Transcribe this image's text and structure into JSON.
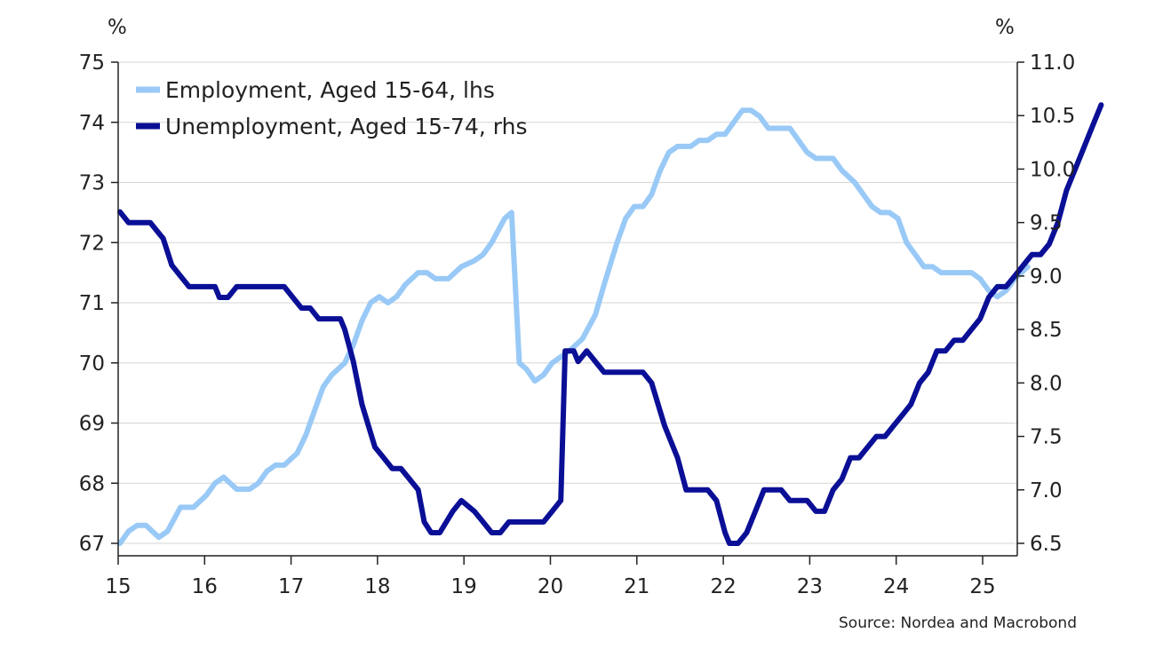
{
  "chart_data": {
    "type": "line",
    "y_left_unit": "%",
    "y_right_unit": "%",
    "y_left": {
      "min": 67,
      "max": 75,
      "ticks": [
        67,
        68,
        69,
        70,
        71,
        72,
        73,
        74,
        75
      ],
      "tick_labels": [
        "67",
        "68",
        "69",
        "70",
        "71",
        "72",
        "73",
        "74",
        "75"
      ]
    },
    "y_right": {
      "min": 6.5,
      "max": 11.0,
      "ticks": [
        6.5,
        7.0,
        7.5,
        8.0,
        8.5,
        9.0,
        9.5,
        10.0,
        10.5,
        11.0
      ],
      "tick_labels": [
        "6.5",
        "7.0",
        "7.5",
        "8.0",
        "8.5",
        "9.0",
        "9.5",
        "10.0",
        "10.5",
        "11.0"
      ]
    },
    "x_axis": {
      "min": 2015,
      "max": 2025.9,
      "ticks": [
        2015,
        2016,
        2017,
        2018,
        2019,
        2020,
        2021,
        2022,
        2023,
        2024,
        2025
      ],
      "tick_labels": [
        "15",
        "16",
        "17",
        "18",
        "19",
        "20",
        "21",
        "22",
        "23",
        "24",
        "25"
      ]
    },
    "grid": true,
    "legend_position": "top-left",
    "series": [
      {
        "name": "Employment, Aged 15-64, lhs",
        "axis": "left",
        "color": "#99c9f6",
        "points": [
          [
            2015.0,
            67.0
          ],
          [
            2015.1,
            67.2
          ],
          [
            2015.2,
            67.3
          ],
          [
            2015.3,
            67.3
          ],
          [
            2015.45,
            67.1
          ],
          [
            2015.55,
            67.2
          ],
          [
            2015.7,
            67.6
          ],
          [
            2015.85,
            67.6
          ],
          [
            2016.0,
            67.8
          ],
          [
            2016.1,
            68.0
          ],
          [
            2016.2,
            68.1
          ],
          [
            2016.35,
            67.9
          ],
          [
            2016.5,
            67.9
          ],
          [
            2016.6,
            68.0
          ],
          [
            2016.7,
            68.2
          ],
          [
            2016.8,
            68.3
          ],
          [
            2016.9,
            68.3
          ],
          [
            2017.05,
            68.5
          ],
          [
            2017.15,
            68.8
          ],
          [
            2017.25,
            69.2
          ],
          [
            2017.35,
            69.6
          ],
          [
            2017.45,
            69.8
          ],
          [
            2017.6,
            70.0
          ],
          [
            2017.7,
            70.3
          ],
          [
            2017.8,
            70.7
          ],
          [
            2017.9,
            71.0
          ],
          [
            2018.0,
            71.1
          ],
          [
            2018.1,
            71.0
          ],
          [
            2018.2,
            71.1
          ],
          [
            2018.3,
            71.3
          ],
          [
            2018.45,
            71.5
          ],
          [
            2018.55,
            71.5
          ],
          [
            2018.65,
            71.4
          ],
          [
            2018.8,
            71.4
          ],
          [
            2018.95,
            71.6
          ],
          [
            2019.1,
            71.7
          ],
          [
            2019.2,
            71.8
          ],
          [
            2019.3,
            72.0
          ],
          [
            2019.45,
            72.4
          ],
          [
            2019.53,
            72.5
          ],
          [
            2019.62,
            70.0
          ],
          [
            2019.7,
            69.9
          ],
          [
            2019.8,
            69.7
          ],
          [
            2019.9,
            69.8
          ],
          [
            2020.0,
            70.0
          ],
          [
            2020.1,
            70.1
          ],
          [
            2020.2,
            70.2
          ],
          [
            2020.35,
            70.4
          ],
          [
            2020.5,
            70.8
          ],
          [
            2020.6,
            71.3
          ],
          [
            2020.75,
            72.0
          ],
          [
            2020.85,
            72.4
          ],
          [
            2020.95,
            72.6
          ],
          [
            2021.05,
            72.6
          ],
          [
            2021.15,
            72.8
          ],
          [
            2021.25,
            73.2
          ],
          [
            2021.35,
            73.5
          ],
          [
            2021.45,
            73.6
          ],
          [
            2021.6,
            73.6
          ],
          [
            2021.7,
            73.7
          ],
          [
            2021.8,
            73.7
          ],
          [
            2021.9,
            73.8
          ],
          [
            2022.0,
            73.8
          ],
          [
            2022.1,
            74.0
          ],
          [
            2022.2,
            74.2
          ],
          [
            2022.3,
            74.2
          ],
          [
            2022.4,
            74.1
          ],
          [
            2022.5,
            73.9
          ],
          [
            2022.6,
            73.9
          ],
          [
            2022.75,
            73.9
          ],
          [
            2022.85,
            73.7
          ],
          [
            2022.95,
            73.5
          ],
          [
            2023.05,
            73.4
          ],
          [
            2023.15,
            73.4
          ],
          [
            2023.25,
            73.4
          ],
          [
            2023.35,
            73.2
          ],
          [
            2023.5,
            73.0
          ],
          [
            2023.6,
            72.8
          ],
          [
            2023.7,
            72.6
          ],
          [
            2023.8,
            72.5
          ],
          [
            2023.9,
            72.5
          ],
          [
            2024.0,
            72.4
          ],
          [
            2024.1,
            72.0
          ],
          [
            2024.2,
            71.8
          ],
          [
            2024.3,
            71.6
          ],
          [
            2024.4,
            71.6
          ],
          [
            2024.5,
            71.5
          ],
          [
            2024.7,
            71.5
          ],
          [
            2024.85,
            71.5
          ],
          [
            2024.95,
            71.4
          ],
          [
            2025.05,
            71.2
          ],
          [
            2025.15,
            71.1
          ],
          [
            2025.25,
            71.2
          ],
          [
            2025.35,
            71.4
          ],
          [
            2025.5,
            71.6
          ]
        ]
      },
      {
        "name": "Unemployment, Aged 15-74, rhs",
        "axis": "right",
        "color": "#0a0f96",
        "points": [
          [
            2015.0,
            9.6
          ],
          [
            2015.1,
            9.5
          ],
          [
            2015.2,
            9.5
          ],
          [
            2015.35,
            9.5
          ],
          [
            2015.5,
            9.35
          ],
          [
            2015.6,
            9.1
          ],
          [
            2015.7,
            9.0
          ],
          [
            2015.8,
            8.9
          ],
          [
            2016.0,
            8.9
          ],
          [
            2016.1,
            8.9
          ],
          [
            2016.15,
            8.8
          ],
          [
            2016.25,
            8.8
          ],
          [
            2016.35,
            8.9
          ],
          [
            2016.55,
            8.9
          ],
          [
            2016.75,
            8.9
          ],
          [
            2016.9,
            8.9
          ],
          [
            2017.0,
            8.8
          ],
          [
            2017.1,
            8.7
          ],
          [
            2017.2,
            8.7
          ],
          [
            2017.3,
            8.6
          ],
          [
            2017.45,
            8.6
          ],
          [
            2017.55,
            8.6
          ],
          [
            2017.6,
            8.5
          ],
          [
            2017.7,
            8.2
          ],
          [
            2017.8,
            7.8
          ],
          [
            2017.95,
            7.4
          ],
          [
            2018.05,
            7.3
          ],
          [
            2018.15,
            7.2
          ],
          [
            2018.25,
            7.2
          ],
          [
            2018.35,
            7.1
          ],
          [
            2018.45,
            7.0
          ],
          [
            2018.52,
            6.7
          ],
          [
            2018.6,
            6.6
          ],
          [
            2018.7,
            6.6
          ],
          [
            2018.85,
            6.8
          ],
          [
            2018.95,
            6.9
          ],
          [
            2019.1,
            6.8
          ],
          [
            2019.2,
            6.7
          ],
          [
            2019.3,
            6.6
          ],
          [
            2019.4,
            6.6
          ],
          [
            2019.5,
            6.7
          ],
          [
            2019.6,
            6.7
          ],
          [
            2019.8,
            6.7
          ],
          [
            2019.9,
            6.7
          ],
          [
            2020.0,
            6.8
          ],
          [
            2020.1,
            6.9
          ],
          [
            2020.15,
            8.3
          ],
          [
            2020.25,
            8.3
          ],
          [
            2020.3,
            8.2
          ],
          [
            2020.4,
            8.3
          ],
          [
            2020.5,
            8.2
          ],
          [
            2020.6,
            8.1
          ],
          [
            2020.8,
            8.1
          ],
          [
            2020.95,
            8.1
          ],
          [
            2021.05,
            8.1
          ],
          [
            2021.15,
            8.0
          ],
          [
            2021.3,
            7.6
          ],
          [
            2021.45,
            7.3
          ],
          [
            2021.55,
            7.0
          ],
          [
            2021.7,
            7.0
          ],
          [
            2021.8,
            7.0
          ],
          [
            2021.9,
            6.9
          ],
          [
            2022.0,
            6.6
          ],
          [
            2022.05,
            6.5
          ],
          [
            2022.15,
            6.5
          ],
          [
            2022.25,
            6.6
          ],
          [
            2022.35,
            6.8
          ],
          [
            2022.45,
            7.0
          ],
          [
            2022.55,
            7.0
          ],
          [
            2022.65,
            7.0
          ],
          [
            2022.75,
            6.9
          ],
          [
            2022.85,
            6.9
          ],
          [
            2022.95,
            6.9
          ],
          [
            2023.05,
            6.8
          ],
          [
            2023.15,
            6.8
          ],
          [
            2023.25,
            7.0
          ],
          [
            2023.35,
            7.1
          ],
          [
            2023.45,
            7.3
          ],
          [
            2023.55,
            7.3
          ],
          [
            2023.65,
            7.4
          ],
          [
            2023.75,
            7.5
          ],
          [
            2023.85,
            7.5
          ],
          [
            2023.95,
            7.6
          ],
          [
            2024.05,
            7.7
          ],
          [
            2024.15,
            7.8
          ],
          [
            2024.25,
            8.0
          ],
          [
            2024.35,
            8.1
          ],
          [
            2024.45,
            8.3
          ],
          [
            2024.55,
            8.3
          ],
          [
            2024.65,
            8.4
          ],
          [
            2024.75,
            8.4
          ],
          [
            2024.85,
            8.5
          ],
          [
            2024.95,
            8.6
          ],
          [
            2025.05,
            8.8
          ],
          [
            2025.15,
            8.9
          ],
          [
            2025.25,
            8.9
          ],
          [
            2025.35,
            9.0
          ],
          [
            2025.45,
            9.1
          ],
          [
            2025.55,
            9.2
          ],
          [
            2025.65,
            9.2
          ],
          [
            2025.75,
            9.3
          ],
          [
            2025.85,
            9.5
          ],
          [
            2025.95,
            9.8
          ],
          [
            2026.05,
            10.0
          ],
          [
            2026.15,
            10.2
          ],
          [
            2026.25,
            10.4
          ],
          [
            2026.35,
            10.6
          ]
        ]
      }
    ],
    "source": "Source: Nordea and Macrobond"
  }
}
